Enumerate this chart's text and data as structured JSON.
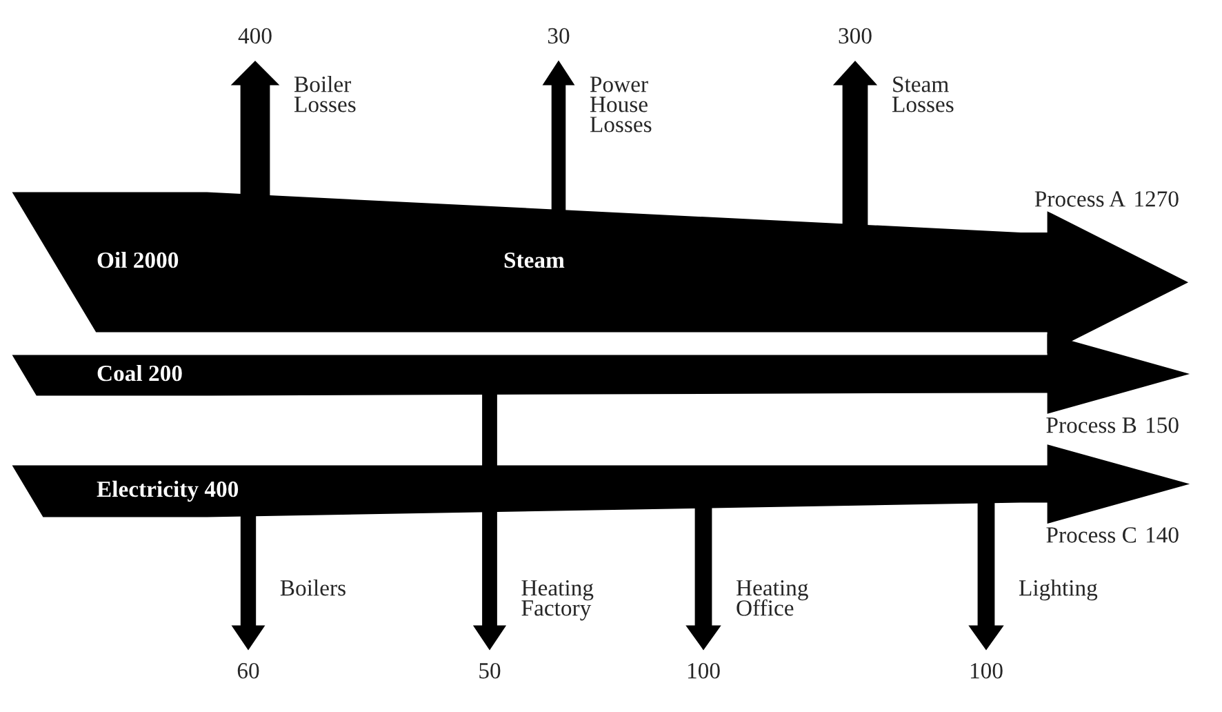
{
  "chart_data": {
    "type": "other",
    "categories": [
      "Boiler\nLosses",
      "Power\nHouse\nLosses",
      "Steam\nLosses",
      "Process A",
      "Heating\nFactory",
      "Process B",
      "Boilers",
      "Heating\nOffice",
      "Lighting",
      "Process C"
    ],
    "series": [
      {
        "name": "Oil 2000",
        "values": [
          400,
          30,
          300,
          1270,
          null,
          null,
          null,
          null,
          null,
          null
        ]
      },
      {
        "name": "Coal 200",
        "values": [
          null,
          null,
          null,
          null,
          50,
          150,
          null,
          null,
          null,
          null
        ]
      },
      {
        "name": "Electricity 400",
        "values": [
          null,
          null,
          null,
          null,
          null,
          null,
          60,
          100,
          100,
          140
        ]
      }
    ],
    "data_labels": true,
    "annotations": [
      "Steam"
    ]
  }
}
